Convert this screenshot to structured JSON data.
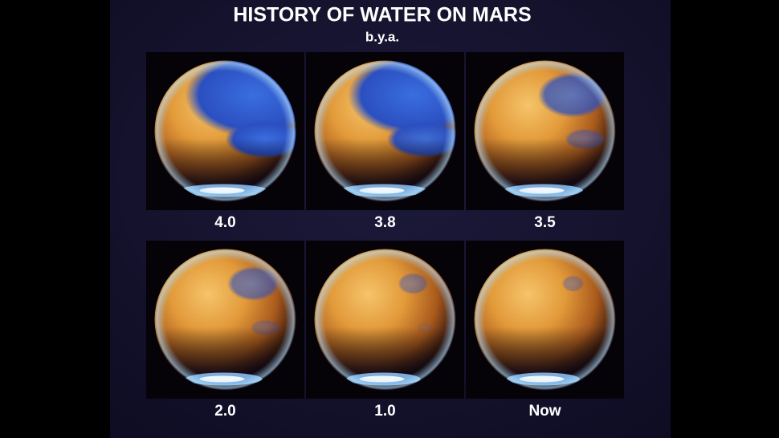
{
  "title": "HISTORY OF WATER ON MARS",
  "subtitle": "b.y.a.",
  "panels": [
    {
      "label": "4.0"
    },
    {
      "label": "3.8"
    },
    {
      "label": "3.5"
    },
    {
      "label": "2.0"
    },
    {
      "label": "1.0"
    },
    {
      "label": "Now"
    }
  ]
}
